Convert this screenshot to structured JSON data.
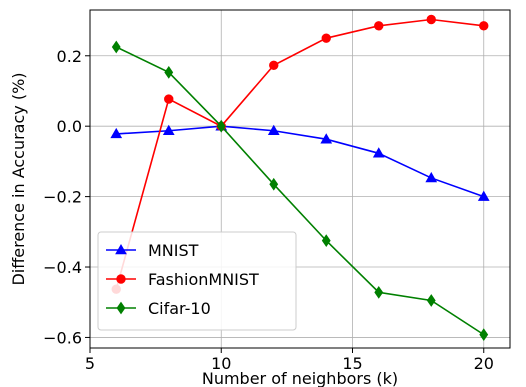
{
  "chart_data": {
    "type": "line",
    "title": "",
    "xlabel": "Number of neighbors (k)",
    "ylabel": "Difference in Accuracy (%)",
    "xlim": [
      5,
      21
    ],
    "ylim": [
      -0.63,
      0.33
    ],
    "xticks": [
      5,
      10,
      15,
      20
    ],
    "yticks": [
      -0.6,
      -0.4,
      -0.2,
      0.0,
      0.2
    ],
    "xtick_labels": [
      "5",
      "10",
      "15",
      "20"
    ],
    "ytick_labels": [
      "−0.6",
      "−0.4",
      "−0.2",
      "0.0",
      "0.2"
    ],
    "grid": true,
    "legend_position": "lower-left",
    "x": [
      6,
      8,
      10,
      12,
      14,
      16,
      18,
      20
    ],
    "series": [
      {
        "name": "MNIST",
        "color": "#0000ff",
        "marker": "triangle",
        "values": [
          -0.022,
          -0.013,
          0.0,
          -0.013,
          -0.037,
          -0.077,
          -0.147,
          -0.2
        ]
      },
      {
        "name": "FashionMNIST",
        "color": "#ff0000",
        "marker": "circle",
        "values": [
          -0.463,
          0.077,
          0.0,
          0.173,
          0.25,
          0.285,
          0.303,
          0.285
        ]
      },
      {
        "name": "Cifar-10",
        "color": "#008000",
        "marker": "diamond",
        "values": [
          0.225,
          0.153,
          0.0,
          -0.165,
          -0.325,
          -0.472,
          -0.495,
          -0.592
        ]
      }
    ]
  }
}
